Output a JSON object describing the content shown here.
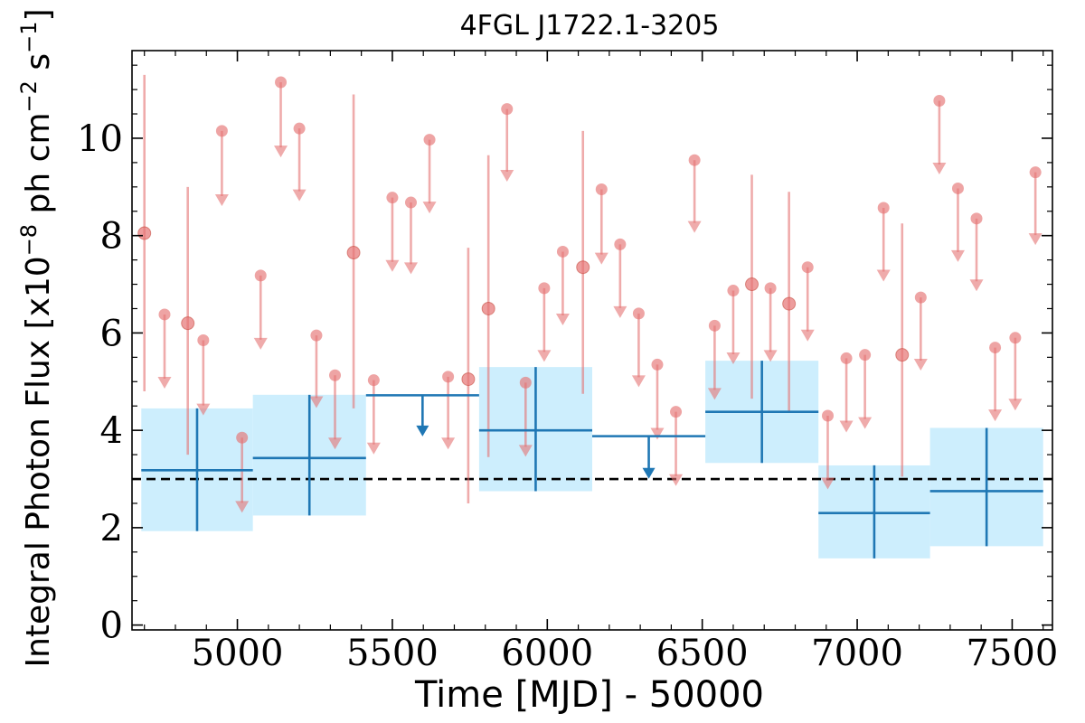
{
  "chart_data": {
    "type": "scatter",
    "title": "4FGL J1722.1-3205",
    "xlabel": "Time [MJD] - 50000",
    "ylabel": "Integral Photon Flux [x10$^{-8}$ ph cm$^{-2}$ s$^{-1}$]",
    "ylabel_parts": {
      "base": "Integral Photon Flux [x10",
      "exp1": "−8",
      "mid": " ph cm",
      "exp2": "−2",
      "mid2": " s",
      "exp3": "−1",
      "end": "]"
    },
    "xlim": [
      4660,
      7630
    ],
    "ylim": [
      -0.1,
      11.8
    ],
    "xticks": [
      5000,
      5500,
      6000,
      6500,
      7000,
      7500
    ],
    "yticks": [
      0,
      2,
      4,
      6,
      8,
      10
    ],
    "reference_line": 3.0,
    "colors": {
      "fine": "#e57373",
      "coarse": "#1f77b4",
      "band": "#cdeefd",
      "reference": "#000000"
    },
    "fine_detections": [
      {
        "x": 4700,
        "y": 8.05,
        "lo": 4.8,
        "hi": 11.3
      },
      {
        "x": 4840,
        "y": 6.2,
        "lo": 3.5,
        "hi": 9.0
      },
      {
        "x": 5375,
        "y": 7.65,
        "lo": 4.45,
        "hi": 10.9
      },
      {
        "x": 5745,
        "y": 5.05,
        "lo": 2.5,
        "hi": 7.75
      },
      {
        "x": 5810,
        "y": 6.5,
        "lo": 3.45,
        "hi": 9.65
      },
      {
        "x": 6115,
        "y": 7.35,
        "lo": 4.75,
        "hi": 10.15
      },
      {
        "x": 6660,
        "y": 7.0,
        "lo": 4.65,
        "hi": 9.25
      },
      {
        "x": 6780,
        "y": 6.6,
        "lo": 4.4,
        "hi": 8.9
      },
      {
        "x": 7145,
        "y": 5.55,
        "lo": 3.05,
        "hi": 8.25
      }
    ],
    "fine_upper_limits": [
      {
        "x": 4765,
        "y": 6.38,
        "end": 4.95
      },
      {
        "x": 4890,
        "y": 5.85,
        "end": 4.4
      },
      {
        "x": 4950,
        "y": 10.15,
        "end": 8.7
      },
      {
        "x": 5015,
        "y": 3.85,
        "end": 2.4
      },
      {
        "x": 5075,
        "y": 7.18,
        "end": 5.75
      },
      {
        "x": 5140,
        "y": 11.15,
        "end": 9.7
      },
      {
        "x": 5200,
        "y": 10.2,
        "end": 8.8
      },
      {
        "x": 5255,
        "y": 5.95,
        "end": 4.55
      },
      {
        "x": 5315,
        "y": 5.13,
        "end": 3.7
      },
      {
        "x": 5440,
        "y": 5.03,
        "end": 3.6
      },
      {
        "x": 5500,
        "y": 8.78,
        "end": 7.35
      },
      {
        "x": 5560,
        "y": 8.68,
        "end": 7.3
      },
      {
        "x": 5620,
        "y": 9.97,
        "end": 8.55
      },
      {
        "x": 5680,
        "y": 5.1,
        "end": 3.7
      },
      {
        "x": 5870,
        "y": 10.6,
        "end": 9.2
      },
      {
        "x": 5930,
        "y": 4.98,
        "end": 3.55
      },
      {
        "x": 5990,
        "y": 6.92,
        "end": 5.5
      },
      {
        "x": 6050,
        "y": 7.67,
        "end": 6.25
      },
      {
        "x": 6175,
        "y": 8.95,
        "end": 7.5
      },
      {
        "x": 6235,
        "y": 7.82,
        "end": 6.4
      },
      {
        "x": 6295,
        "y": 6.4,
        "end": 4.98
      },
      {
        "x": 6355,
        "y": 5.35,
        "end": 3.9
      },
      {
        "x": 6415,
        "y": 4.38,
        "end": 2.95
      },
      {
        "x": 6475,
        "y": 9.55,
        "end": 8.15
      },
      {
        "x": 6540,
        "y": 6.15,
        "end": 4.72
      },
      {
        "x": 6600,
        "y": 6.87,
        "end": 5.45
      },
      {
        "x": 6720,
        "y": 6.92,
        "end": 5.5
      },
      {
        "x": 6840,
        "y": 7.35,
        "end": 5.92
      },
      {
        "x": 6905,
        "y": 4.3,
        "end": 2.88
      },
      {
        "x": 6965,
        "y": 5.48,
        "end": 4.05
      },
      {
        "x": 7025,
        "y": 5.55,
        "end": 4.12
      },
      {
        "x": 7085,
        "y": 8.57,
        "end": 7.15
      },
      {
        "x": 7205,
        "y": 6.73,
        "end": 5.32
      },
      {
        "x": 7265,
        "y": 10.77,
        "end": 9.35
      },
      {
        "x": 7325,
        "y": 8.97,
        "end": 7.55
      },
      {
        "x": 7385,
        "y": 8.35,
        "end": 6.95
      },
      {
        "x": 7445,
        "y": 5.7,
        "end": 4.28
      },
      {
        "x": 7510,
        "y": 5.9,
        "end": 4.5
      },
      {
        "x": 7575,
        "y": 9.3,
        "end": 7.9
      }
    ],
    "coarse_detections": [
      {
        "x0": 4690,
        "x1": 5050,
        "y": 3.18,
        "lo": 1.93,
        "hi": 4.45
      },
      {
        "x0": 5050,
        "x1": 5415,
        "y": 3.43,
        "lo": 2.25,
        "hi": 4.73
      },
      {
        "x0": 5780,
        "x1": 6145,
        "y": 4.0,
        "lo": 2.75,
        "hi": 5.3
      },
      {
        "x0": 6510,
        "x1": 6875,
        "y": 4.38,
        "lo": 3.33,
        "hi": 5.43
      },
      {
        "x0": 6875,
        "x1": 7235,
        "y": 2.3,
        "lo": 1.37,
        "hi": 3.28
      },
      {
        "x0": 7235,
        "x1": 7600,
        "y": 2.75,
        "lo": 1.62,
        "hi": 4.05
      }
    ],
    "coarse_upper_limits": [
      {
        "x0": 5415,
        "x1": 5780,
        "y": 4.72,
        "end": 3.95
      },
      {
        "x0": 6145,
        "x1": 6510,
        "y": 3.88,
        "end": 3.08
      }
    ]
  }
}
